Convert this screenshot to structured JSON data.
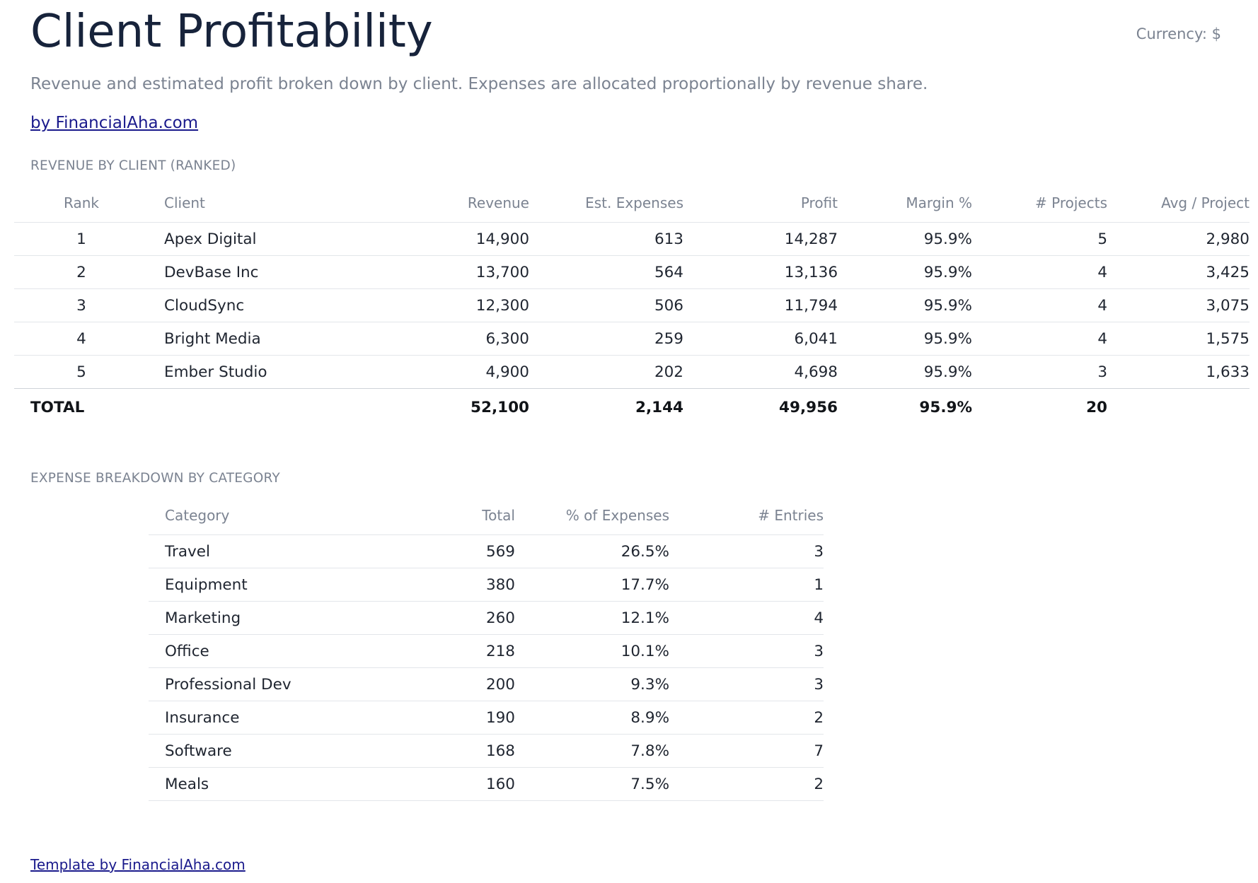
{
  "header": {
    "title": "Client Profitability",
    "currency": "Currency: $",
    "subtitle": "Revenue and estimated profit broken down by client. Expenses are allocated proportionally by revenue share.",
    "byline": "by FinancialAha.com"
  },
  "revenue_table": {
    "label": "REVENUE BY CLIENT (RANKED)",
    "columns": [
      "Rank",
      "Client",
      "Revenue",
      "Est. Expenses",
      "Profit",
      "Margin %",
      "# Projects",
      "Avg / Project"
    ],
    "rows": [
      [
        "1",
        "Apex Digital",
        "14,900",
        "613",
        "14,287",
        "95.9%",
        "5",
        "2,980"
      ],
      [
        "2",
        "DevBase Inc",
        "13,700",
        "564",
        "13,136",
        "95.9%",
        "4",
        "3,425"
      ],
      [
        "3",
        "CloudSync",
        "12,300",
        "506",
        "11,794",
        "95.9%",
        "4",
        "3,075"
      ],
      [
        "4",
        "Bright Media",
        "6,300",
        "259",
        "6,041",
        "95.9%",
        "4",
        "1,575"
      ],
      [
        "5",
        "Ember Studio",
        "4,900",
        "202",
        "4,698",
        "95.9%",
        "3",
        "1,633"
      ]
    ],
    "total": [
      "TOTAL",
      "52,100",
      "2,144",
      "49,956",
      "95.9%",
      "20"
    ]
  },
  "expense_table": {
    "label": "EXPENSE BREAKDOWN BY CATEGORY",
    "columns": [
      "Category",
      "Total",
      "% of Expenses",
      "# Entries"
    ],
    "rows": [
      [
        "Travel",
        "569",
        "26.5%",
        "3"
      ],
      [
        "Equipment",
        "380",
        "17.7%",
        "1"
      ],
      [
        "Marketing",
        "260",
        "12.1%",
        "4"
      ],
      [
        "Office",
        "218",
        "10.1%",
        "3"
      ],
      [
        "Professional Dev",
        "200",
        "9.3%",
        "3"
      ],
      [
        "Insurance",
        "190",
        "8.9%",
        "2"
      ],
      [
        "Software",
        "168",
        "7.8%",
        "7"
      ],
      [
        "Meals",
        "160",
        "7.5%",
        "2"
      ]
    ]
  },
  "footer": {
    "link": "Template by FinancialAha.com"
  }
}
